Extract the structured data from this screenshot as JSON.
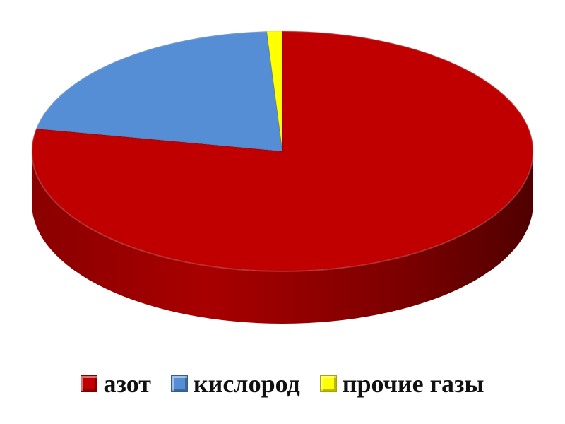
{
  "chart_data": {
    "type": "pie",
    "style": "3d",
    "categories": [
      "азот",
      "кислород",
      "прочие газы"
    ],
    "values": [
      78,
      21,
      1
    ],
    "colors": [
      "#c00000",
      "#558ed5",
      "#ffff00"
    ],
    "legend_position": "bottom"
  },
  "legend": {
    "items": [
      {
        "label": "азот",
        "color": "#c00000"
      },
      {
        "label": "кислород",
        "color": "#558ed5"
      },
      {
        "label": "прочие газы",
        "color": "#ffff00"
      }
    ]
  }
}
